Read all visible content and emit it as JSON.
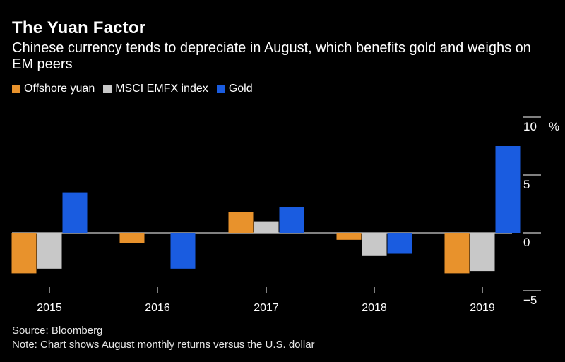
{
  "chart_data": {
    "type": "bar",
    "title": "The Yuan Factor",
    "subtitle": "Chinese currency tends to depreciate in August, which benefits gold and weighs on EM peers",
    "categories": [
      "2015",
      "2016",
      "2017",
      "2018",
      "2019"
    ],
    "series": [
      {
        "name": "Offshore yuan",
        "color": "#e8922c",
        "values": [
          -3.5,
          -0.9,
          1.8,
          -0.6,
          -3.5
        ]
      },
      {
        "name": "MSCI EMFX index",
        "color": "#c8c8c8",
        "values": [
          -3.1,
          0,
          1.0,
          -2.0,
          -3.3
        ]
      },
      {
        "name": "Gold",
        "color": "#1a5ce0",
        "values": [
          3.5,
          -3.1,
          2.2,
          -1.8,
          7.5
        ]
      }
    ],
    "yaxis": {
      "ticks": [
        10,
        5,
        0,
        -5
      ],
      "unit": "%",
      "range": [
        -5,
        10
      ]
    },
    "legend_position": "top-left",
    "source": "Source: Bloomberg",
    "note": "Note: Chart shows August monthly returns versus the U.S. dollar"
  }
}
